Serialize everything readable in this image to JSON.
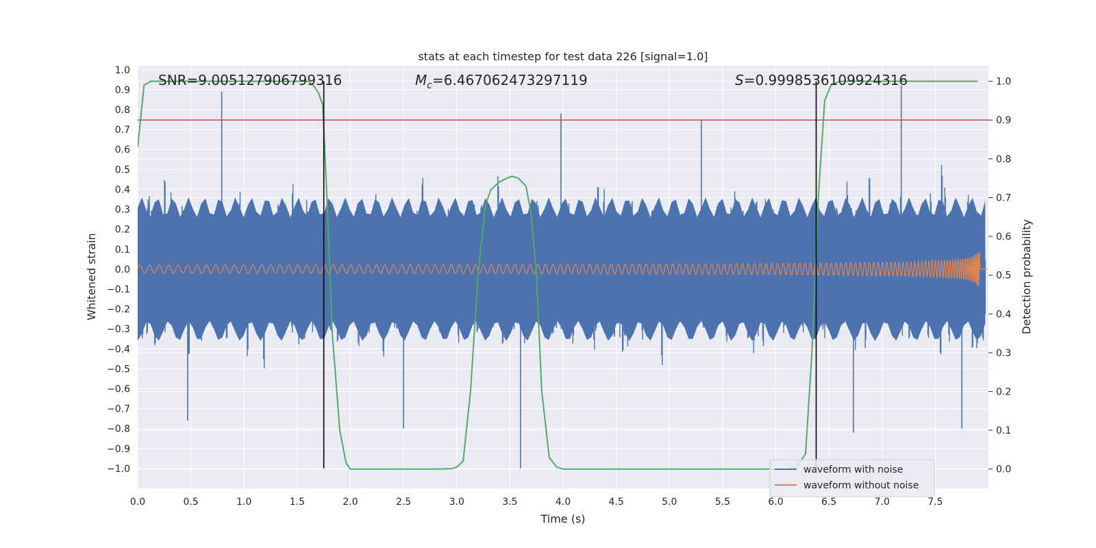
{
  "chart_data": {
    "type": "line",
    "title": "stats at each timestep for test data 226 [signal=1.0]",
    "xlabel": "Time (s)",
    "ylabel_left": "Whitened strain",
    "ylabel_right": "Detection probability",
    "xlim": [
      0.0,
      8.0
    ],
    "ylim_left": [
      -1.1,
      1.02
    ],
    "ylim_right": [
      -0.05,
      1.04
    ],
    "x_ticks": [
      "0.0",
      "0.5",
      "1.0",
      "1.5",
      "2.0",
      "2.5",
      "3.0",
      "3.5",
      "4.0",
      "4.5",
      "5.0",
      "5.5",
      "6.0",
      "6.5",
      "7.0",
      "7.5"
    ],
    "x_tick_values": [
      0.0,
      0.5,
      1.0,
      1.5,
      2.0,
      2.5,
      3.0,
      3.5,
      4.0,
      4.5,
      5.0,
      5.5,
      6.0,
      6.5,
      7.0,
      7.5
    ],
    "y_left_ticks": [
      "1.0",
      "0.9",
      "0.8",
      "0.7",
      "0.6",
      "0.5",
      "0.4",
      "0.3",
      "0.2",
      "0.1",
      "0.0",
      "−0.1",
      "−0.2",
      "−0.3",
      "−0.4",
      "−0.5",
      "−0.6",
      "−0.7",
      "−0.8",
      "−0.9",
      "−1.0"
    ],
    "y_left_tick_values": [
      1.0,
      0.9,
      0.8,
      0.7,
      0.6,
      0.5,
      0.4,
      0.3,
      0.2,
      0.1,
      0.0,
      -0.1,
      -0.2,
      -0.3,
      -0.4,
      -0.5,
      -0.6,
      -0.7,
      -0.8,
      -0.9,
      -1.0
    ],
    "y_right_ticks": [
      "1.0",
      "0.9",
      "0.8",
      "0.7",
      "0.6",
      "0.5",
      "0.4",
      "0.3",
      "0.2",
      "0.1",
      "0.0"
    ],
    "y_right_tick_values": [
      1.0,
      0.9,
      0.8,
      0.7,
      0.6,
      0.5,
      0.4,
      0.3,
      0.2,
      0.1,
      0.0
    ],
    "annotations": {
      "snr": "SNR=9.005127906799316",
      "mc_symbol": "M",
      "mc_sub": "c",
      "mc_value": "=6.467062473297119",
      "s_symbol": "S",
      "s_value": "=0.9998536109924316"
    },
    "threshold_line": {
      "axis": "right",
      "value": 0.9,
      "color": "#c44e52"
    },
    "vertical_lines": [
      1.75,
      6.38
    ],
    "series": [
      {
        "name": "waveform with noise",
        "color": "#4c72b0",
        "axis": "left",
        "envelope_note": "noise band approx ±0.4, spikes to ±0.9",
        "spikes": [
          [
            0.79,
            0.89
          ],
          [
            3.6,
            -1.0
          ],
          [
            7.18,
            0.92
          ],
          [
            0.47,
            -0.76
          ],
          [
            2.5,
            -0.8
          ],
          [
            6.73,
            -0.82
          ],
          [
            7.75,
            -0.8
          ],
          [
            3.98,
            0.78
          ],
          [
            5.3,
            0.75
          ]
        ]
      },
      {
        "name": "waveform without noise",
        "color": "#dd8452",
        "axis": "left",
        "chirp": {
          "start_amp": 0.02,
          "end_amp": 0.2,
          "merger_time": 7.92,
          "start_freq": 11,
          "end_freq": 80
        }
      },
      {
        "name": "detection probability",
        "color": "#55a868",
        "axis": "right",
        "x": [
          0.0,
          0.06,
          0.12,
          0.2,
          0.5,
          1.0,
          1.5,
          1.6,
          1.65,
          1.7,
          1.74,
          1.78,
          1.83,
          1.9,
          1.96,
          2.0,
          2.2,
          2.5,
          2.8,
          2.95,
          3.0,
          3.06,
          3.13,
          3.2,
          3.27,
          3.32,
          3.4,
          3.47,
          3.52,
          3.58,
          3.65,
          3.7,
          3.75,
          3.8,
          3.87,
          3.94,
          4.0,
          4.3,
          5.0,
          5.5,
          6.0,
          6.1,
          6.2,
          6.28,
          6.34,
          6.4,
          6.46,
          6.52,
          6.6,
          6.8,
          7.0,
          7.5,
          7.9
        ],
        "y": [
          0.83,
          0.99,
          1.0,
          1.0,
          1.0,
          1.0,
          1.0,
          1.0,
          0.99,
          0.97,
          0.94,
          0.7,
          0.35,
          0.1,
          0.015,
          0.0,
          0.0,
          0.0,
          0.0,
          0.001,
          0.005,
          0.02,
          0.2,
          0.5,
          0.68,
          0.72,
          0.74,
          0.75,
          0.755,
          0.75,
          0.73,
          0.66,
          0.5,
          0.2,
          0.03,
          0.005,
          0.0,
          0.0,
          0.0,
          0.0,
          0.0,
          0.0,
          0.005,
          0.04,
          0.3,
          0.7,
          0.95,
          0.99,
          1.0,
          1.0,
          1.0,
          1.0,
          1.0
        ]
      }
    ],
    "legend": {
      "placement": "lower-right",
      "entries": [
        {
          "label": "waveform with noise",
          "color": "#4c72b0"
        },
        {
          "label": "waveform without noise",
          "color": "#dd8452"
        }
      ]
    }
  }
}
